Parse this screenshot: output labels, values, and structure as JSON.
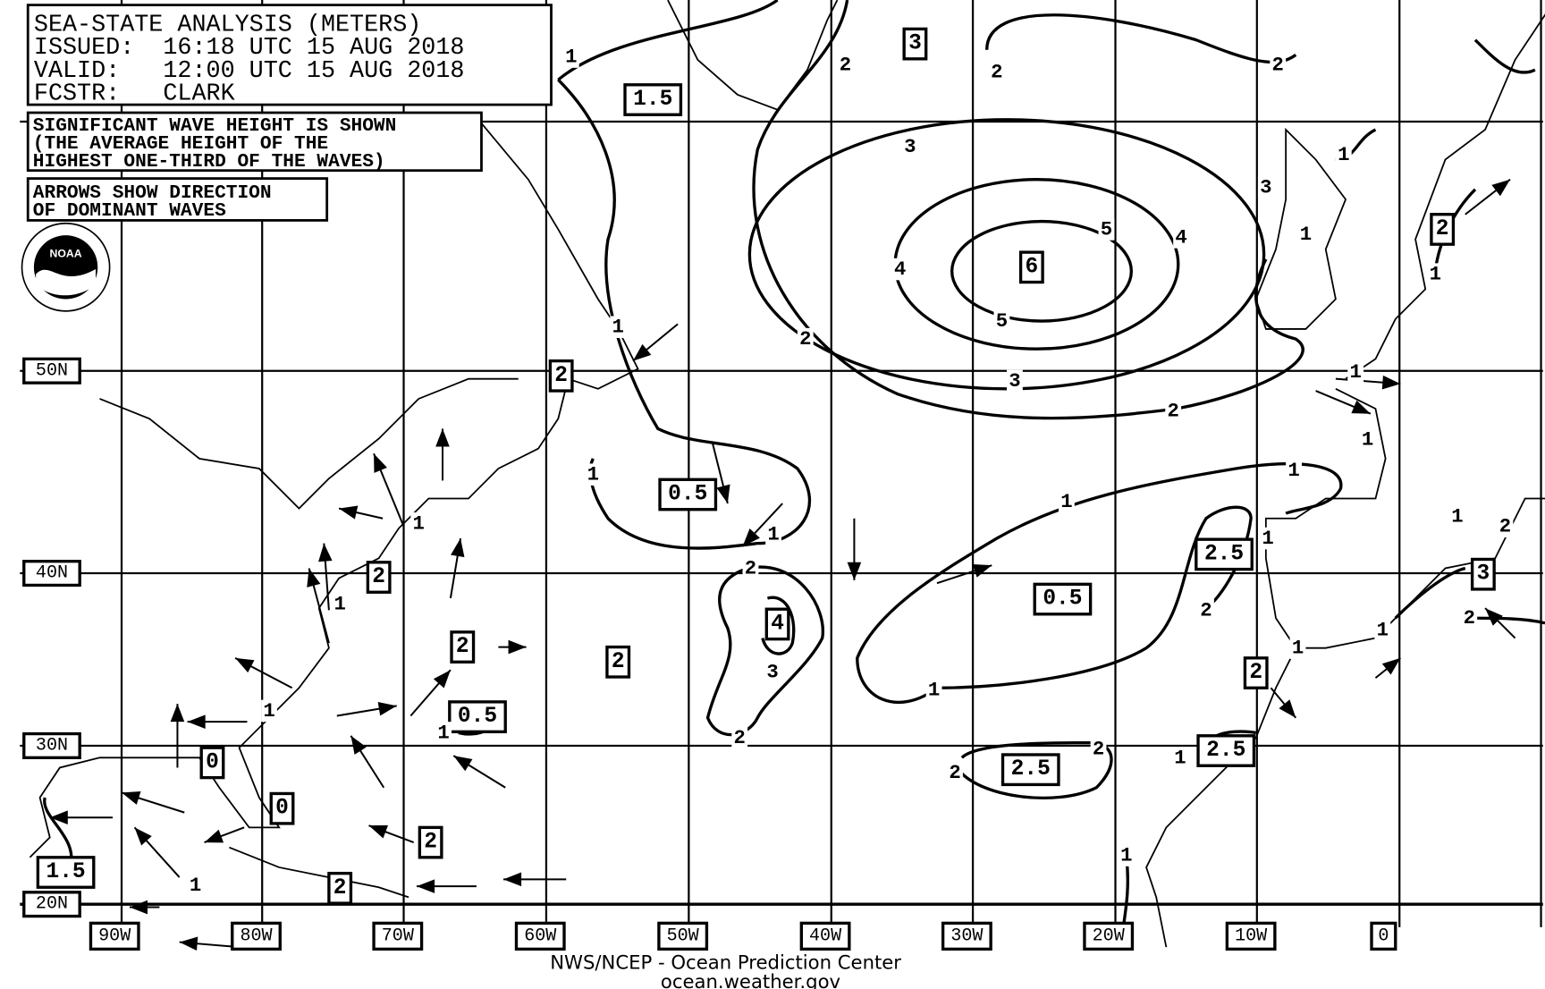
{
  "header": {
    "title": "SEA-STATE ANALYSIS (METERS)",
    "issued": "ISSUED:  16:18 UTC 15 AUG 2018",
    "valid": "VALID:   12:00 UTC 15 AUG 2018",
    "forecaster": "FCSTR:   CLARK"
  },
  "notes": {
    "wave_height_line1": "SIGNIFICANT WAVE HEIGHT IS SHOWN",
    "wave_height_line2": "(THE AVERAGE HEIGHT OF THE",
    "wave_height_line3": "HIGHEST ONE-THIRD OF THE WAVES)",
    "arrows_line1": "ARROWS SHOW DIRECTION",
    "arrows_line2": "OF DOMINANT WAVES"
  },
  "logo": {
    "text": "NOAA"
  },
  "latitudes": [
    "50N",
    "40N",
    "30N",
    "20N"
  ],
  "longitudes": [
    "90W",
    "80W",
    "70W",
    "60W",
    "50W",
    "40W",
    "30W",
    "20W",
    "10W",
    "0"
  ],
  "height_boxes": [
    "1.5",
    "3",
    "6",
    "2",
    "2",
    "0.5",
    "2.5",
    "3",
    "0.5",
    "4",
    "2",
    "2",
    "2",
    "2",
    "0.5",
    "0",
    "0",
    "2.5",
    "2.5",
    "2",
    "2",
    "1.5"
  ],
  "contour_labels": [
    "1",
    "2",
    "2",
    "2",
    "3",
    "3",
    "4",
    "4",
    "5",
    "5",
    "3",
    "2",
    "2",
    "1",
    "1",
    "1",
    "1",
    "1",
    "2",
    "3",
    "1",
    "1",
    "1",
    "2",
    "2",
    "2",
    "1",
    "1",
    "1",
    "1",
    "2",
    "1",
    "1",
    "1",
    "1",
    "1",
    "1",
    "1",
    "1",
    "1",
    "1",
    "2",
    "2"
  ],
  "credit": {
    "line1": "NWS/NCEP - Ocean Prediction Center",
    "line2": "ocean.weather.gov"
  },
  "colors": {
    "ink": "#000000",
    "background": "#ffffff"
  }
}
